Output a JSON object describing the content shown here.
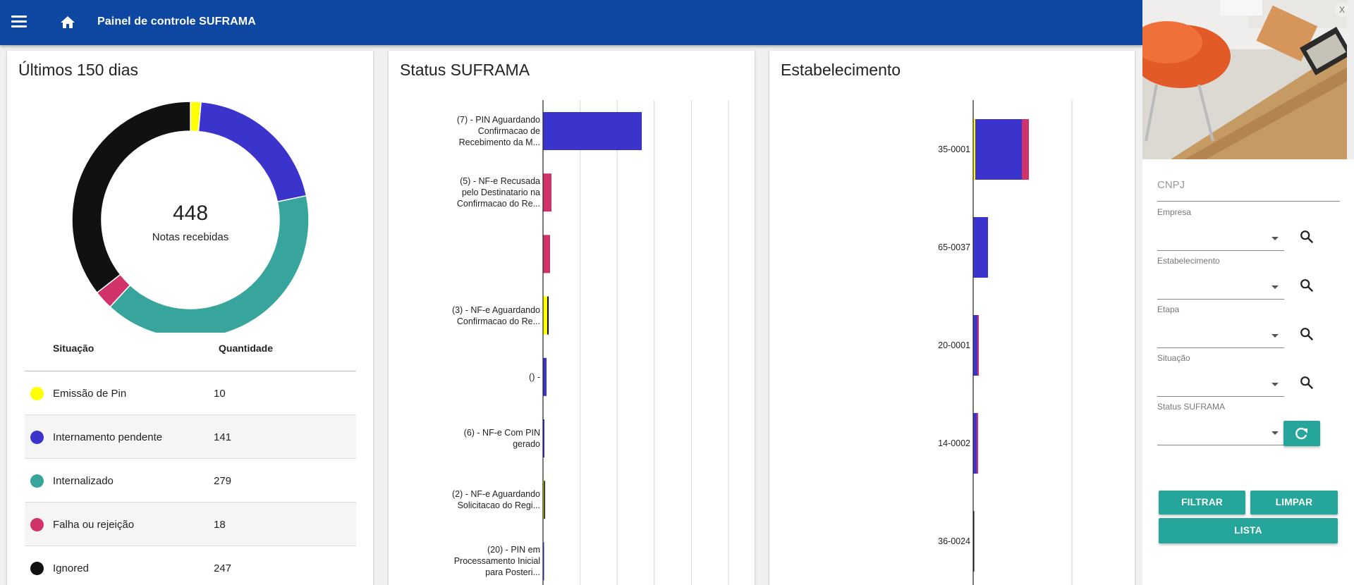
{
  "header": {
    "title": "Painel de controle SUFRAMA",
    "menu_icon": "menu-icon",
    "home_icon": "home-icon",
    "background": "#0d47a1"
  },
  "donut_card": {
    "title": "Últimos 150 dias",
    "total": "448",
    "total_label": "Notas recebidas",
    "col_situacao": "Situação",
    "col_quantidade": "Quantidade",
    "rows": [
      {
        "label": "Emissão de Pin",
        "qty": "10",
        "color": "#ffff00"
      },
      {
        "label": "Internamento pendente",
        "qty": "141",
        "color": "#3a33cc"
      },
      {
        "label": "Internalizado",
        "qty": "279",
        "color": "#38a59c"
      },
      {
        "label": "Falha ou rejeição",
        "qty": "18",
        "color": "#d0336a"
      },
      {
        "label": "Ignored",
        "qty": "247",
        "color": "#111111"
      }
    ]
  },
  "status_card": {
    "title": "Status SUFRAMA"
  },
  "estab_card": {
    "title": "Estabelecimento"
  },
  "chart_data": [
    {
      "type": "pie",
      "title": "Últimos 150 dias",
      "categories": [
        "Emissão de Pin",
        "Internamento pendente",
        "Internalizado",
        "Falha ou rejeição",
        "Ignored"
      ],
      "values": [
        10,
        141,
        279,
        18,
        247
      ],
      "colors": [
        "#ffff00",
        "#3a33cc",
        "#38a59c",
        "#d0336a",
        "#111111"
      ]
    },
    {
      "type": "bar",
      "orientation": "horizontal",
      "stacked": true,
      "title": "Status SUFRAMA",
      "categories": [
        "(7) - PIN Aguardando Confirmacao de Recebimento da M...",
        "(5) - NF-e Recusada pelo Destinatario na Confirmacao do Re...",
        "",
        "(3) - NF-e Aguardando Confirmacao do Re...",
        "() -",
        "(6) - NF-e Com PIN gerado",
        "(2) - NF-e Aguardando Solicitacao do Regi...",
        "(20) - PIN em Processamento Inicial para Posteri..."
      ],
      "series": [
        {
          "color": "#3a33cc",
          "values": [
            140,
            0,
            0,
            0,
            5,
            2,
            0,
            1
          ]
        },
        {
          "color": "#d0336a",
          "values": [
            0,
            12,
            10,
            0,
            0,
            0,
            0,
            0
          ]
        },
        {
          "color": "#ffff00",
          "values": [
            0,
            0,
            0,
            6,
            0,
            0,
            1,
            0
          ]
        },
        {
          "color": "#111111",
          "values": [
            0,
            0,
            0,
            2,
            0,
            0,
            1,
            0
          ]
        }
      ],
      "xlim": [
        0,
        212
      ],
      "grid": true
    },
    {
      "type": "bar",
      "orientation": "horizontal",
      "stacked": true,
      "title": "Estabelecimento",
      "categories": [
        "35-0001",
        "65-0037",
        "20-0001",
        "14-0002",
        "36-0024"
      ],
      "series": [
        {
          "color": "#ffff00",
          "values": [
            3,
            0,
            0,
            0,
            0
          ]
        },
        {
          "color": "#3a33cc",
          "values": [
            66,
            21,
            6,
            5,
            0
          ]
        },
        {
          "color": "#d0336a",
          "values": [
            10,
            0,
            2,
            2,
            0
          ]
        },
        {
          "color": "#111111",
          "values": [
            0,
            0,
            0,
            0,
            1
          ]
        }
      ],
      "xlim": [
        0,
        140
      ],
      "grid": true
    }
  ],
  "side_panel": {
    "cnpj_placeholder": "CNPJ",
    "fields": [
      {
        "label": "Empresa"
      },
      {
        "label": "Estabelecimento"
      },
      {
        "label": "Etapa"
      },
      {
        "label": "Situação"
      },
      {
        "label": "Status SUFRAMA"
      }
    ],
    "buttons": {
      "filtrar": "FILTRAR",
      "limpar": "LIMPAR",
      "lista": "LISTA"
    },
    "close_label": "X",
    "accent": "#26a69a"
  }
}
